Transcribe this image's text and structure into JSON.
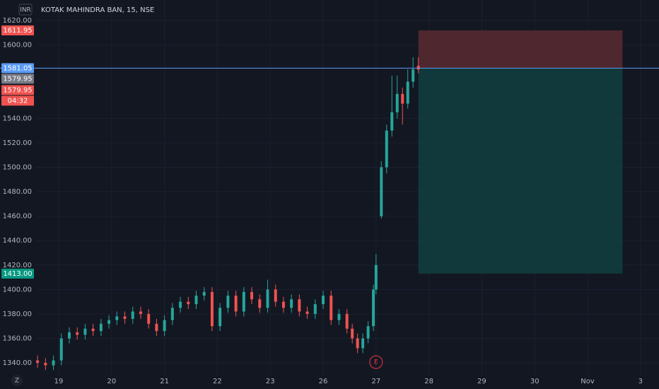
{
  "chart_data": {
    "type": "candlestick",
    "title": "KOTAK MAHINDRA BAN, 15, NSE",
    "currency": "INR",
    "zoom_icon": "Z",
    "up_color": "#26a69a",
    "down_color": "#ef5350",
    "grid": true,
    "x": [
      -0.4,
      -0.25,
      -0.1,
      0.05,
      0.2,
      0.35,
      0.5,
      0.65,
      0.8,
      0.95,
      1.1,
      1.25,
      1.4,
      1.55,
      1.7,
      1.85,
      2.0,
      2.15,
      2.3,
      2.45,
      2.6,
      2.75,
      2.9,
      3.05,
      3.2,
      3.35,
      3.5,
      3.65,
      3.8,
      3.95,
      4.1,
      4.25,
      4.4,
      4.55,
      4.7,
      4.85,
      5.0,
      5.15,
      5.3,
      5.45,
      5.55,
      5.65,
      5.75,
      5.85,
      5.95,
      6.0,
      6.1,
      6.2,
      6.3,
      6.4,
      6.5,
      6.6,
      6.7,
      6.8
    ],
    "open": [
      1342,
      1340,
      1338,
      1342,
      1360,
      1365,
      1363,
      1368,
      1366,
      1372,
      1375,
      1378,
      1376,
      1382,
      1380,
      1372,
      1366,
      1375,
      1385,
      1390,
      1388,
      1395,
      1398,
      1370,
      1385,
      1395,
      1382,
      1398,
      1392,
      1385,
      1400,
      1390,
      1385,
      1392,
      1382,
      1380,
      1388,
      1395,
      1375,
      1380,
      1368,
      1360,
      1352,
      1360,
      1370,
      1400,
      1460,
      1500,
      1530,
      1545,
      1560,
      1552,
      1570,
      1583
    ],
    "high": [
      1346,
      1344,
      1346,
      1364,
      1369,
      1369,
      1372,
      1372,
      1376,
      1379,
      1382,
      1382,
      1386,
      1386,
      1384,
      1376,
      1379,
      1389,
      1394,
      1394,
      1399,
      1402,
      1402,
      1389,
      1399,
      1399,
      1402,
      1402,
      1396,
      1408,
      1404,
      1394,
      1396,
      1396,
      1386,
      1392,
      1399,
      1399,
      1384,
      1384,
      1372,
      1364,
      1364,
      1374,
      1404,
      1429,
      1505,
      1535,
      1575,
      1575,
      1565,
      1580,
      1590,
      1590
    ],
    "low": [
      1336,
      1334,
      1334,
      1338,
      1356,
      1359,
      1359,
      1362,
      1362,
      1368,
      1371,
      1372,
      1372,
      1376,
      1368,
      1362,
      1362,
      1371,
      1381,
      1384,
      1384,
      1391,
      1366,
      1366,
      1381,
      1378,
      1378,
      1388,
      1381,
      1381,
      1386,
      1381,
      1381,
      1378,
      1376,
      1376,
      1384,
      1371,
      1371,
      1364,
      1356,
      1348,
      1348,
      1356,
      1366,
      1396,
      1458,
      1495,
      1525,
      1540,
      1535,
      1548,
      1565,
      1577
    ],
    "close": [
      1340,
      1338,
      1342,
      1360,
      1365,
      1363,
      1368,
      1366,
      1372,
      1375,
      1378,
      1376,
      1382,
      1380,
      1372,
      1366,
      1375,
      1385,
      1390,
      1388,
      1395,
      1398,
      1370,
      1385,
      1395,
      1382,
      1398,
      1392,
      1385,
      1400,
      1390,
      1385,
      1392,
      1382,
      1380,
      1388,
      1395,
      1375,
      1380,
      1368,
      1360,
      1352,
      1360,
      1370,
      1400,
      1420,
      1500,
      1530,
      1545,
      1560,
      1552,
      1570,
      1580,
      1580
    ],
    "xlim": [
      -1.11,
      11.35
    ],
    "xticks": [
      {
        "value": 0,
        "label": "19"
      },
      {
        "value": 1,
        "label": "20"
      },
      {
        "value": 2,
        "label": "21"
      },
      {
        "value": 3,
        "label": "22"
      },
      {
        "value": 4,
        "label": "23"
      },
      {
        "value": 5,
        "label": "26"
      },
      {
        "value": 6,
        "label": "27"
      },
      {
        "value": 7,
        "label": "28"
      },
      {
        "value": 8,
        "label": "29"
      },
      {
        "value": 9,
        "label": "30"
      },
      {
        "value": 10,
        "label": "Nov"
      },
      {
        "value": 11,
        "label": "3"
      }
    ],
    "ylim": [
      1330.2,
      1636.8
    ],
    "yticks": [
      {
        "value": 1620,
        "label": "1620.00"
      },
      {
        "value": 1600,
        "label": "1600.00"
      },
      {
        "value": 1540,
        "label": "1540.00"
      },
      {
        "value": 1520,
        "label": "1520.00"
      },
      {
        "value": 1500,
        "label": "1500.00"
      },
      {
        "value": 1480,
        "label": "1480.00"
      },
      {
        "value": 1460,
        "label": "1460.00"
      },
      {
        "value": 1440,
        "label": "1440.00"
      },
      {
        "value": 1420,
        "label": "1420.00"
      },
      {
        "value": 1400,
        "label": "1400.00"
      },
      {
        "value": 1380,
        "label": "1380.00"
      },
      {
        "value": 1360,
        "label": "1360.00"
      },
      {
        "value": 1340,
        "label": "1340.00"
      }
    ],
    "position": {
      "start": 6.8,
      "end": 10.66,
      "stop": 1611.95,
      "entry": 1581.05,
      "target": 1413,
      "stop_color": "#5a2a30",
      "target_color": "#12403f"
    },
    "price_labels": [
      {
        "value": 1611.95,
        "label": "1611.95",
        "color": "#ef5350"
      },
      {
        "value": 1581.05,
        "label": "1581.05",
        "color": "#5b9cf6"
      },
      {
        "value": 1579.95,
        "label": "1579.95",
        "color": "#787b86"
      },
      {
        "value": 1579.95,
        "label": "1579.95",
        "color": "#ef5350"
      },
      {
        "value": 1413,
        "label": "1413.00",
        "color": "#089981"
      }
    ],
    "countdown": "04:32",
    "event_marker": {
      "x": 6.0,
      "label": "E"
    }
  }
}
